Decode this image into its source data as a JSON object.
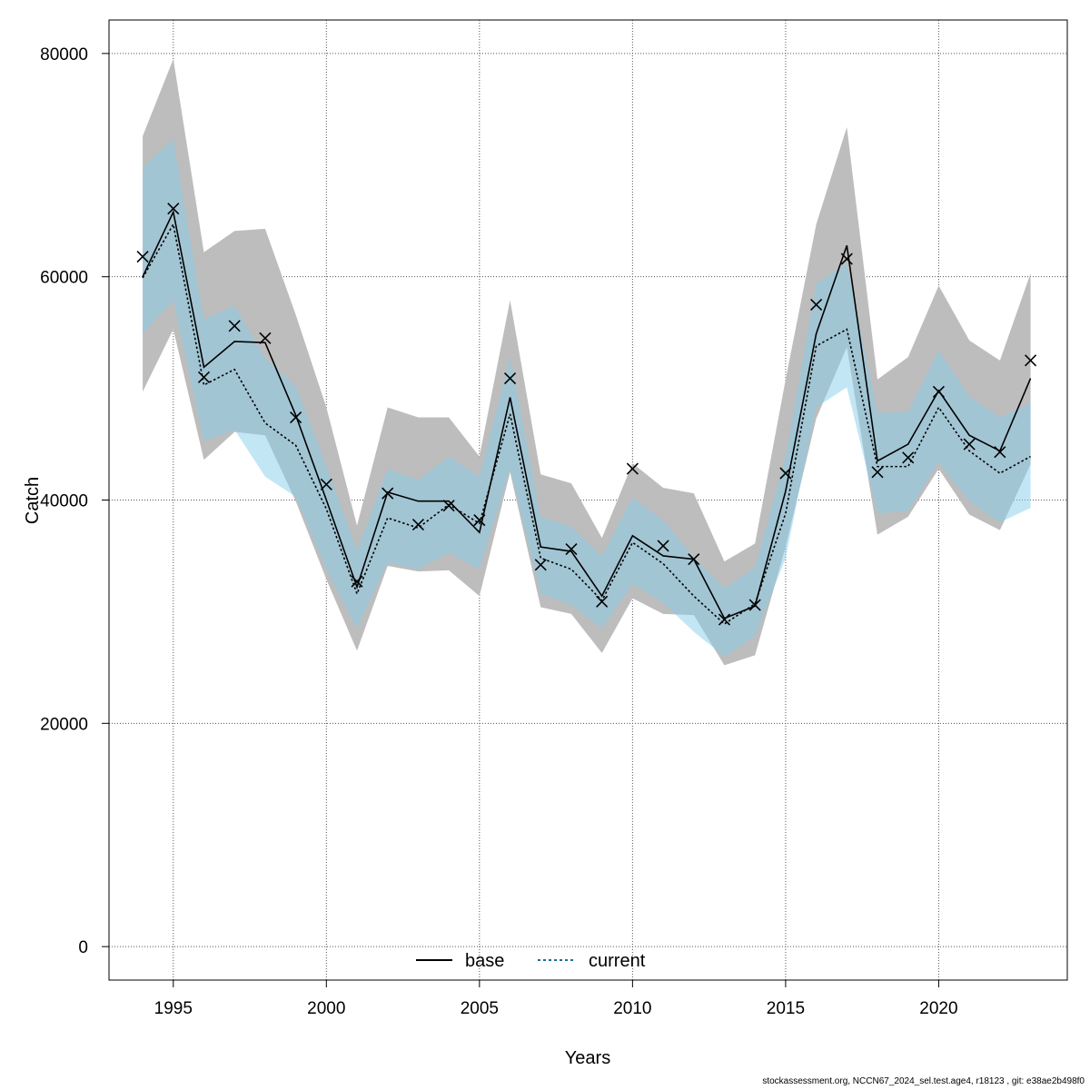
{
  "chart_data": {
    "type": "line",
    "xlabel": "Years",
    "ylabel": "Catch",
    "xlim": [
      1992.9,
      2024.2
    ],
    "ylim": [
      -3000,
      83000
    ],
    "x_ticks": [
      1995,
      2000,
      2005,
      2010,
      2015,
      2020
    ],
    "y_ticks": [
      0,
      20000,
      40000,
      60000,
      80000
    ],
    "grid": true,
    "legend_position": "bottom-center",
    "years": [
      1994,
      1995,
      1996,
      1997,
      1998,
      1999,
      2000,
      2001,
      2002,
      2003,
      2004,
      2005,
      2006,
      2007,
      2008,
      2009,
      2010,
      2011,
      2012,
      2013,
      2014,
      2015,
      2016,
      2017,
      2018,
      2019,
      2020,
      2021,
      2022,
      2023
    ],
    "series": [
      {
        "name": "base",
        "line_style": "solid",
        "line_color": "#000000",
        "band_color": "#bdbdbd",
        "values": [
          60000,
          65800,
          51900,
          54200,
          54100,
          47600,
          40000,
          32200,
          40700,
          39900,
          39900,
          37100,
          49200,
          35800,
          35400,
          31400,
          36800,
          35000,
          34700,
          29400,
          30500,
          40800,
          54900,
          62800,
          43500,
          45000,
          49800,
          45800,
          44400,
          50900
        ],
        "lower": [
          49700,
          55300,
          43600,
          46100,
          45800,
          39900,
          32900,
          26500,
          34100,
          33600,
          33700,
          31400,
          42500,
          30400,
          29800,
          26300,
          31200,
          29800,
          29700,
          25200,
          26100,
          35800,
          47300,
          53700,
          36900,
          38500,
          42800,
          38700,
          37300,
          43200
        ],
        "upper": [
          72600,
          79500,
          62200,
          64100,
          64300,
          56600,
          48300,
          37700,
          48300,
          47400,
          47400,
          43900,
          57900,
          42300,
          41500,
          36600,
          43300,
          41100,
          40600,
          34500,
          36100,
          50800,
          64700,
          73400,
          50800,
          52800,
          59200,
          54300,
          52500,
          60300
        ]
      },
      {
        "name": "current",
        "line_style": "dotted",
        "line_color": "#000000",
        "band_color": "#87ceeb",
        "values": [
          59900,
          64700,
          50300,
          51700,
          46900,
          44900,
          39200,
          31600,
          38400,
          37500,
          39600,
          37900,
          47700,
          34800,
          33800,
          31000,
          36200,
          34300,
          31400,
          28900,
          30700,
          38800,
          53800,
          55300,
          43000,
          43000,
          48300,
          44400,
          42400,
          43900
        ],
        "lower": [
          54900,
          57900,
          45300,
          46300,
          42100,
          40300,
          33800,
          28500,
          34400,
          33800,
          35300,
          33800,
          42700,
          31600,
          30600,
          28500,
          32500,
          30800,
          28200,
          26000,
          27800,
          34800,
          48300,
          50100,
          38800,
          39000,
          43400,
          39900,
          38000,
          39300
        ],
        "upper": [
          69800,
          72300,
          56200,
          57400,
          52700,
          50200,
          43100,
          35500,
          42800,
          41800,
          43900,
          42100,
          52800,
          38500,
          37600,
          35000,
          40200,
          38200,
          34900,
          32100,
          34000,
          43900,
          59400,
          61200,
          47800,
          47900,
          53400,
          49300,
          47400,
          48700
        ]
      }
    ],
    "observations": {
      "marker": "x",
      "values": [
        61800,
        66100,
        51000,
        55600,
        54500,
        47400,
        41400,
        32700,
        40600,
        37800,
        39500,
        38200,
        50900,
        34200,
        35600,
        30900,
        42800,
        35900,
        34700,
        29300,
        30600,
        42400,
        57500,
        61600,
        42500,
        43800,
        49700,
        45000,
        44300,
        52500
      ]
    }
  },
  "footer_text": "stockassessment.org, NCCN67_2024_sel.test.age4, r18123 , git: e38ae2b498f0"
}
